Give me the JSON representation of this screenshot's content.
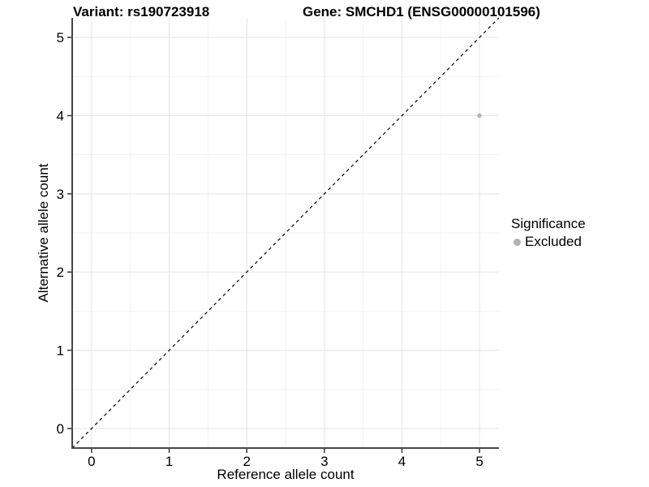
{
  "header": {
    "title_left": "Variant: rs190723918",
    "title_right": "Gene: SMCHD1 (ENSG00000101596)"
  },
  "chart_data": {
    "type": "scatter",
    "title": "Variant: rs190723918   Gene: SMCHD1 (ENSG00000101596)",
    "xlabel": "Reference allele count",
    "ylabel": "Alternative allele count",
    "xlim": [
      -0.25,
      5.25
    ],
    "ylim": [
      -0.25,
      5.25
    ],
    "x_ticks": [
      0,
      1,
      2,
      3,
      4,
      5
    ],
    "x_tick_labels": [
      "0",
      "1",
      "2",
      "3",
      "4",
      "5"
    ],
    "y_ticks": [
      0,
      1,
      2,
      3,
      4,
      5
    ],
    "y_tick_labels": [
      "0",
      "1",
      "2",
      "3",
      "4",
      "5"
    ],
    "minor_ticks": [
      0.5,
      1.5,
      2.5,
      3.5,
      4.5
    ],
    "grid": true,
    "series": [
      {
        "name": "Excluded",
        "color": "#b3b3b3",
        "points": [
          {
            "x": 5,
            "y": 4
          }
        ]
      }
    ],
    "reference_line": {
      "label": "identity",
      "slope": 1,
      "intercept": 0,
      "style": "dashed",
      "color": "#000000"
    },
    "legend": {
      "title": "Significance",
      "position": "right",
      "entries": [
        {
          "label": "Excluded",
          "color": "#b3b3b3"
        }
      ]
    }
  },
  "colors": {
    "background": "#ffffff",
    "axis_line": "#474747",
    "tick_mark": "#333333",
    "text": "#000000",
    "grid_major": "#e4e4e4",
    "grid_minor": "#f2f2f2",
    "point": "#b3b3b3"
  }
}
